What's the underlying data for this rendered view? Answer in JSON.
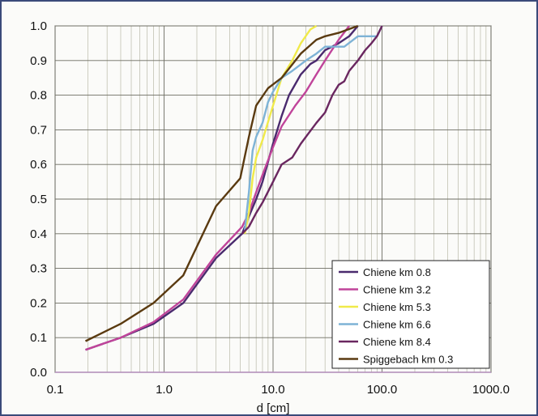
{
  "chart_data": {
    "type": "line",
    "title": "",
    "xlabel": "d [cm]",
    "ylabel": "",
    "x_scale": "log",
    "xlim": [
      0.1,
      1000
    ],
    "ylim": [
      0,
      1
    ],
    "grid": true,
    "legend_position": "bottom-right",
    "x_tick_labels": [
      "0.1",
      "1.0",
      "10.0",
      "100.0",
      "1000.0"
    ],
    "y_tick_labels": [
      "0.0",
      "0.1",
      "0.2",
      "0.3",
      "0.4",
      "0.5",
      "0.6",
      "0.7",
      "0.8",
      "0.9",
      "1.0"
    ],
    "series": [
      {
        "name": "Chiene km 0.8",
        "color": "#4a2a6e",
        "points": [
          [
            0.19,
            0.065
          ],
          [
            0.4,
            0.1
          ],
          [
            0.8,
            0.14
          ],
          [
            1.5,
            0.2
          ],
          [
            3,
            0.33
          ],
          [
            5.2,
            0.4
          ],
          [
            6,
            0.45
          ],
          [
            7,
            0.5
          ],
          [
            8,
            0.55
          ],
          [
            10,
            0.66
          ],
          [
            12,
            0.74
          ],
          [
            14,
            0.8
          ],
          [
            18,
            0.86
          ],
          [
            22,
            0.89
          ],
          [
            25,
            0.9
          ],
          [
            30,
            0.93
          ],
          [
            40,
            0.95
          ],
          [
            50,
            0.97
          ],
          [
            60,
            1.0
          ]
        ]
      },
      {
        "name": "Chiene km 3.2",
        "color": "#c0449a",
        "points": [
          [
            0.19,
            0.065
          ],
          [
            0.4,
            0.1
          ],
          [
            0.8,
            0.145
          ],
          [
            1.5,
            0.21
          ],
          [
            3,
            0.34
          ],
          [
            5.2,
            0.42
          ],
          [
            6,
            0.46
          ],
          [
            7,
            0.52
          ],
          [
            8,
            0.57
          ],
          [
            10,
            0.65
          ],
          [
            12,
            0.71
          ],
          [
            16,
            0.77
          ],
          [
            20,
            0.81
          ],
          [
            25,
            0.86
          ],
          [
            30,
            0.9
          ],
          [
            40,
            0.96
          ],
          [
            50,
            1.0
          ]
        ]
      },
      {
        "name": "Chiene km 5.3",
        "color": "#f0ea4a",
        "points": [
          [
            5.5,
            0.4
          ],
          [
            6,
            0.46
          ],
          [
            6.5,
            0.56
          ],
          [
            7,
            0.62
          ],
          [
            8,
            0.67
          ],
          [
            10,
            0.77
          ],
          [
            12,
            0.85
          ],
          [
            15,
            0.9
          ],
          [
            18,
            0.95
          ],
          [
            22,
            0.99
          ],
          [
            25,
            1.0
          ]
        ]
      },
      {
        "name": "Chiene km 6.6",
        "color": "#7eb3d6",
        "points": [
          [
            5.5,
            0.41
          ],
          [
            6,
            0.52
          ],
          [
            6.5,
            0.64
          ],
          [
            7,
            0.68
          ],
          [
            8,
            0.72
          ],
          [
            9,
            0.78
          ],
          [
            10,
            0.81
          ],
          [
            12,
            0.85
          ],
          [
            15,
            0.87
          ],
          [
            20,
            0.9
          ],
          [
            25,
            0.92
          ],
          [
            30,
            0.94
          ],
          [
            45,
            0.94
          ],
          [
            60,
            0.97
          ],
          [
            90,
            0.97
          ],
          [
            100,
            1.0
          ]
        ]
      },
      {
        "name": "Chiene km 8.4",
        "color": "#6a2760",
        "points": [
          [
            5.2,
            0.4
          ],
          [
            6,
            0.42
          ],
          [
            7,
            0.46
          ],
          [
            8,
            0.49
          ],
          [
            10,
            0.55
          ],
          [
            12,
            0.6
          ],
          [
            15,
            0.62
          ],
          [
            18,
            0.66
          ],
          [
            25,
            0.72
          ],
          [
            30,
            0.75
          ],
          [
            35,
            0.8
          ],
          [
            40,
            0.83
          ],
          [
            45,
            0.84
          ],
          [
            50,
            0.87
          ],
          [
            60,
            0.9
          ],
          [
            70,
            0.93
          ],
          [
            80,
            0.95
          ],
          [
            90,
            0.97
          ],
          [
            100,
            1.0
          ]
        ]
      },
      {
        "name": "Spiggebach km 0.3",
        "color": "#5a3a10",
        "points": [
          [
            0.19,
            0.09
          ],
          [
            0.4,
            0.14
          ],
          [
            0.8,
            0.2
          ],
          [
            1.5,
            0.28
          ],
          [
            3,
            0.48
          ],
          [
            5,
            0.56
          ],
          [
            6,
            0.68
          ],
          [
            7,
            0.77
          ],
          [
            9,
            0.82
          ],
          [
            12,
            0.85
          ],
          [
            18,
            0.92
          ],
          [
            25,
            0.96
          ],
          [
            30,
            0.97
          ],
          [
            40,
            0.98
          ],
          [
            60,
            1.0
          ]
        ]
      }
    ]
  }
}
